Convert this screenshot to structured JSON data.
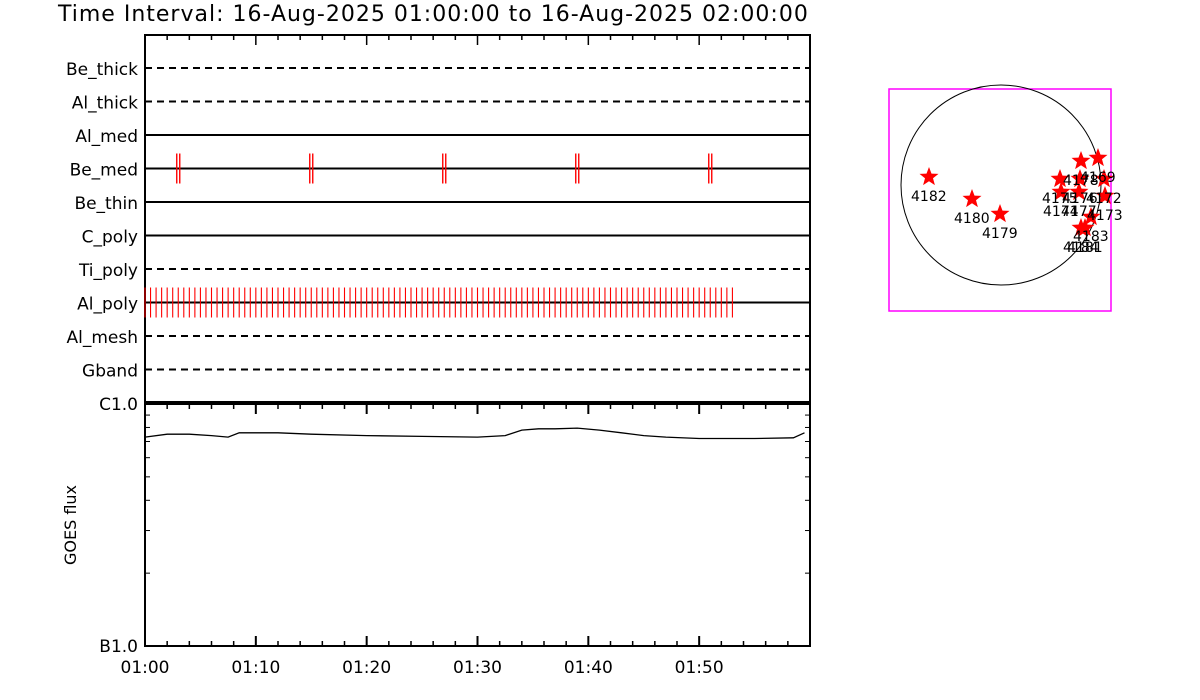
{
  "title": "Time Interval: 16-Aug-2025 01:00:00 to 16-Aug-2025 02:00:00",
  "colors": {
    "event_marker": "#ff0000",
    "star": "#ff0000",
    "map_frame": "#ff00ff",
    "axes": "#000000"
  },
  "chart_data": [
    {
      "type": "event-timeline",
      "x_tick_labels": [
        "01:00",
        "01:10",
        "01:20",
        "01:30",
        "01:40",
        "01:50"
      ],
      "x_range_minutes": [
        0,
        60
      ],
      "rows": [
        {
          "name": "Be_thick",
          "line": "dashed",
          "events_minutes": []
        },
        {
          "name": "Al_thick",
          "line": "dashed",
          "events_minutes": []
        },
        {
          "name": "Al_med",
          "line": "solid",
          "events_minutes": []
        },
        {
          "name": "Be_med",
          "line": "solid",
          "events_minutes": [
            3,
            15,
            27,
            39,
            51
          ]
        },
        {
          "name": "Be_thin",
          "line": "solid",
          "events_minutes": []
        },
        {
          "name": "C_poly",
          "line": "solid",
          "events_minutes": []
        },
        {
          "name": "Ti_poly",
          "line": "dashed",
          "events_minutes": []
        },
        {
          "name": "Al_poly",
          "line": "solid",
          "events_range_minutes": [
            0,
            53
          ],
          "event_spacing_minutes": 0.5
        },
        {
          "name": "Al_mesh",
          "line": "dashed",
          "events_minutes": []
        },
        {
          "name": "Gband",
          "line": "dashed",
          "events_minutes": []
        }
      ]
    },
    {
      "type": "line",
      "ylabel": "GOES flux",
      "y_tick_labels": [
        "C1.0",
        "B1.0"
      ],
      "y_scale": "log",
      "ylim": [
        1e-07,
        1e-06
      ],
      "x_tick_labels": [
        "01:00",
        "01:10",
        "01:20",
        "01:30",
        "01:40",
        "01:50"
      ],
      "x_range_minutes": [
        0,
        60
      ],
      "series": [
        {
          "x_minutes": [
            0,
            2,
            4,
            6,
            7.5,
            8.5,
            10,
            12,
            15,
            20,
            25,
            30,
            32.5,
            34,
            35.5,
            37,
            39,
            41,
            43,
            45,
            47,
            50,
            55,
            58.5,
            59.5
          ],
          "y": [
            7.3e-07,
            7.5e-07,
            7.5e-07,
            7.4e-07,
            7.3e-07,
            7.6e-07,
            7.6e-07,
            7.6e-07,
            7.5e-07,
            7.4e-07,
            7.35e-07,
            7.3e-07,
            7.4e-07,
            7.8e-07,
            7.9e-07,
            7.9e-07,
            7.95e-07,
            7.8e-07,
            7.6e-07,
            7.4e-07,
            7.3e-07,
            7.2e-07,
            7.2e-07,
            7.25e-07,
            7.6e-07
          ]
        }
      ]
    },
    {
      "type": "scatter",
      "marker": "star",
      "points": [
        {
          "label": "4182",
          "x": -0.72,
          "y": 0.08
        },
        {
          "label": "4180",
          "x": -0.29,
          "y": -0.14
        },
        {
          "label": "4179",
          "x": -0.01,
          "y": -0.29
        },
        {
          "label": "4175",
          "x": 0.59,
          "y": 0.06
        },
        {
          "label": "4174",
          "x": 0.6,
          "y": -0.07
        },
        {
          "label": "4177",
          "x": 0.78,
          "y": -0.07
        },
        {
          "label": "4176",
          "x": 0.79,
          "y": 0.06
        },
        {
          "label": "4178",
          "x": 0.8,
          "y": 0.24
        },
        {
          "label": "4169",
          "x": 0.97,
          "y": 0.27
        },
        {
          "label": "4172",
          "x": 1.03,
          "y": 0.06
        },
        {
          "label": "4173",
          "x": 1.04,
          "y": -0.11
        },
        {
          "label": "4183",
          "x": 0.9,
          "y": -0.32
        },
        {
          "label": "4181",
          "x": 0.84,
          "y": -0.43
        },
        {
          "label": "4184",
          "x": 0.8,
          "y": -0.43
        }
      ],
      "label_positions": "below-left"
    }
  ]
}
